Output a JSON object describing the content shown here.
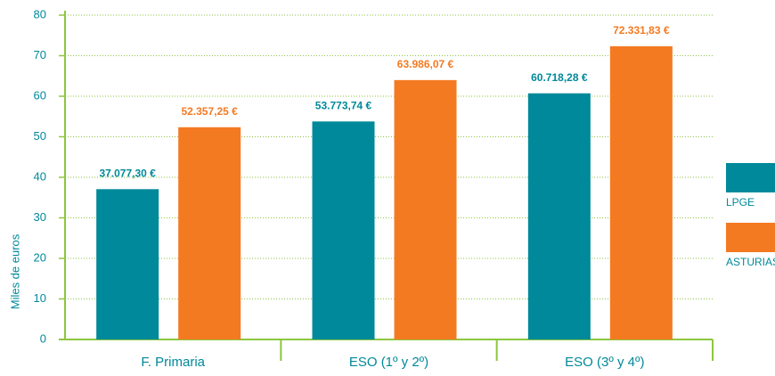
{
  "chart_data": {
    "type": "bar",
    "y_label": "Miles de euros",
    "categories": [
      "F. Primaria",
      "ESO (1º y 2º)",
      "ESO (3º y 4º)"
    ],
    "series": [
      {
        "name": "LPGE",
        "color": "#00899a",
        "values": [
          37.0773,
          53.77374,
          60.71828
        ],
        "value_labels": [
          "37.077,30 €",
          "53.773,74 €",
          "60.718,28 €"
        ]
      },
      {
        "name": "ASTURIAS",
        "color": "#f47a22",
        "values": [
          52.35725,
          63.98607,
          72.33183
        ],
        "value_labels": [
          "52.357,25 €",
          "63.986,07 €",
          "72.331,83 €"
        ]
      }
    ],
    "ylim": [
      0,
      80
    ],
    "yticks": [
      0,
      10,
      20,
      30,
      40,
      50,
      60,
      70,
      80
    ],
    "grid": true,
    "legend": "right"
  }
}
